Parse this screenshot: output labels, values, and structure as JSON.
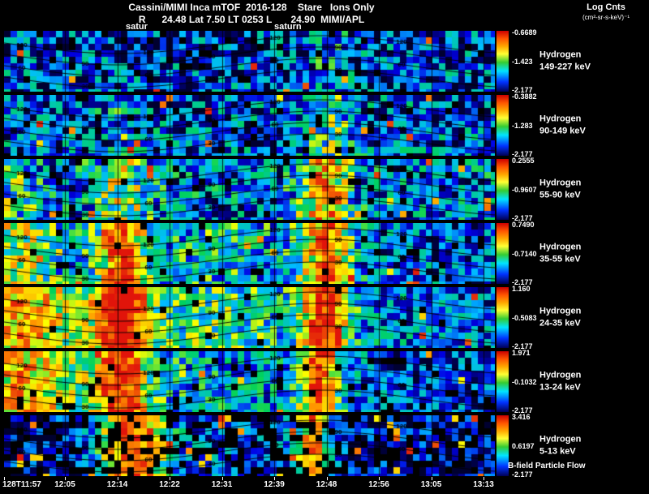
{
  "header": {
    "title": "Cassini/MIMI Inca mTOF  2016-128    Stare   Ions Only",
    "subtitle": "R      24.48 Lat 7.50 LT 0253 L       24.90  MIMI/APL",
    "log_label": "Log Cnts",
    "log_units": "(cm²-sr-s-keV)⁻¹"
  },
  "annotations": {
    "marker_left": "satur",
    "marker_right": "saturn",
    "bfield_label": "B-field Particle Flow"
  },
  "chart_data": {
    "type": "heatmap",
    "title": "Cassini/MIMI INCA mTOF 2016-128 Stare - Ions Only",
    "x_labels": [
      "128T11:57",
      "12:05",
      "12:14",
      "12:22",
      "12:31",
      "12:39",
      "12:48",
      "12:56",
      "13:05",
      "13:13"
    ],
    "contour_levels": [
      120,
      90,
      60,
      30
    ],
    "colorbar_bottom_value": -2.177,
    "panels": [
      {
        "species": "Hydrogen",
        "energy": "149-227 keV",
        "cbar_top": "-0.6689",
        "cbar_mid": "-1.423",
        "cbar_bot": "-2.177",
        "render": {
          "base": 0.18,
          "tilt": 0,
          "noise": 0.55,
          "black_prob": 0.05,
          "spike_prob": 0.02,
          "hotspots": [
            {
              "x": 0.66,
              "w": 0.05,
              "s": 0.12
            }
          ]
        }
      },
      {
        "species": "Hydrogen",
        "energy": "90-149 keV",
        "cbar_top": "-0.3882",
        "cbar_mid": "-1.283",
        "cbar_bot": "-2.177",
        "render": {
          "base": 0.2,
          "tilt": 0,
          "noise": 0.55,
          "black_prob": 0.05,
          "spike_prob": 0.02,
          "hotspots": [
            {
              "x": 0.66,
              "w": 0.06,
              "s": 0.25
            },
            {
              "x": 0.24,
              "w": 0.05,
              "s": 0.1
            }
          ]
        }
      },
      {
        "species": "Hydrogen",
        "energy": "55-90 keV",
        "cbar_top": "0.2555",
        "cbar_mid": "-0.9607",
        "cbar_bot": "-2.177",
        "render": {
          "base": 0.24,
          "tilt": 0,
          "noise": 0.55,
          "black_prob": 0.05,
          "spike_prob": 0.02,
          "hotspots": [
            {
              "x": 0.655,
              "w": 0.05,
              "s": 0.55
            },
            {
              "x": 0.24,
              "w": 0.06,
              "s": 0.3
            },
            {
              "x": 0.02,
              "w": 0.06,
              "s": 0.2
            }
          ]
        }
      },
      {
        "species": "Hydrogen",
        "energy": "35-55 keV",
        "cbar_top": "0.7490",
        "cbar_mid": "-0.7140",
        "cbar_bot": "-2.177",
        "render": {
          "base": 0.3,
          "tilt": -0.1,
          "noise": 0.5,
          "black_prob": 0.04,
          "spike_prob": 0.02,
          "hotspots": [
            {
              "x": 0.24,
              "w": 0.045,
              "s": 0.65
            },
            {
              "x": 0.655,
              "w": 0.05,
              "s": 0.6
            },
            {
              "x": 0.03,
              "w": 0.08,
              "s": 0.3
            },
            {
              "x": 0.45,
              "w": 0.15,
              "s": 0.12
            }
          ]
        }
      },
      {
        "species": "Hydrogen",
        "energy": "24-35 keV",
        "cbar_top": "1.160",
        "cbar_mid": "-0.5083",
        "cbar_bot": "-2.177",
        "render": {
          "base": 0.42,
          "tilt": -0.2,
          "noise": 0.45,
          "black_prob": 0.03,
          "spike_prob": 0.015,
          "hotspots": [
            {
              "x": 0.24,
              "w": 0.05,
              "s": 0.7
            },
            {
              "x": 0.655,
              "w": 0.045,
              "s": 0.7
            },
            {
              "x": 0.04,
              "w": 0.1,
              "s": 0.35
            },
            {
              "x": 0.42,
              "w": 0.18,
              "s": 0.12
            }
          ]
        }
      },
      {
        "species": "Hydrogen",
        "energy": "13-24 keV",
        "cbar_top": "1.971",
        "cbar_mid": "-0.1032",
        "cbar_bot": "-2.177",
        "render": {
          "base": 0.45,
          "tilt": -0.3,
          "noise": 0.45,
          "black_prob": 0.06,
          "spike_prob": 0.015,
          "hotspots": [
            {
              "x": 0.24,
              "w": 0.05,
              "s": 0.65
            },
            {
              "x": 0.645,
              "w": 0.04,
              "s": 0.65
            },
            {
              "x": 0.04,
              "w": 0.09,
              "s": 0.3
            }
          ]
        }
      },
      {
        "species": "Hydrogen",
        "energy": "5-13 keV",
        "cbar_top": "3.416",
        "cbar_mid": "0.6197",
        "cbar_bot": "-2.177",
        "render": {
          "base": 0.1,
          "tilt": 0,
          "noise": 0.4,
          "black_prob": 0.3,
          "spike_prob": 0.05,
          "hotspots": [
            {
              "x": 0.26,
              "w": 0.07,
              "s": 0.75
            },
            {
              "x": 0.63,
              "w": 0.035,
              "s": 0.65
            },
            {
              "x": 0.45,
              "w": 0.2,
              "s": 0.12
            }
          ]
        }
      }
    ]
  }
}
